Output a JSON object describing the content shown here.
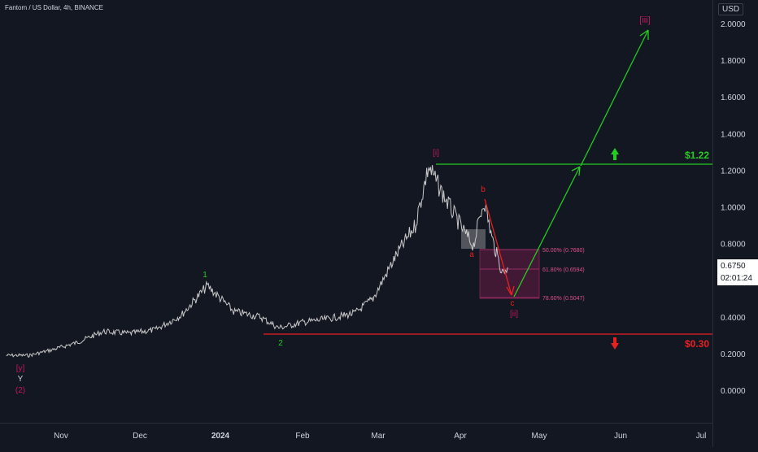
{
  "title": "Fantom / US Dollar, 4h, BINANCE",
  "price_axis": {
    "currency": "USD",
    "ticks": [
      "2.0000",
      "1.8000",
      "1.6000",
      "1.4000",
      "1.2000",
      "1.0000",
      "0.8000",
      "0.6000",
      "0.4000",
      "0.2000",
      "0.0000"
    ],
    "current_price": "0.6750",
    "countdown": "02:01:24"
  },
  "time_axis": {
    "ticks": [
      "Nov",
      "Dec",
      "2024",
      "Feb",
      "Mar",
      "Apr",
      "May",
      "Jun",
      "Jul"
    ]
  },
  "colors": {
    "background": "#131722",
    "candles": "#c8c8c8",
    "bullish": "#22cc22",
    "bearish": "#e82020",
    "wave_label": "#c2185b",
    "fib_zone": "#6a1b45"
  },
  "annotations": {
    "target_up": "$1.22",
    "target_down": "$0.30",
    "wave_y": "[y]",
    "wave_Y": "Y",
    "wave_2_paren": "(2)",
    "wave_1_green": "1",
    "wave_2_green": "2",
    "wave_i": "[i]",
    "wave_a": "a",
    "wave_b": "b",
    "wave_c": "c",
    "wave_ii": "[ii]",
    "wave_iii": "[iii]",
    "fib_50": "50.00% (0.7680)",
    "fib_618": "61.80% (0.6594)",
    "fib_786": "78.60% (0.5047)"
  },
  "chart_data": {
    "type": "line",
    "title": "Fantom / US Dollar, 4h, BINANCE",
    "xlabel": "",
    "ylabel": "",
    "ylim": [
      0,
      2.1
    ],
    "x": [
      "2023-10-08",
      "2023-10-18",
      "2023-10-28",
      "2023-11-07",
      "2023-11-17",
      "2023-11-27",
      "2023-12-07",
      "2023-12-17",
      "2023-12-27",
      "2024-01-06",
      "2024-01-16",
      "2024-01-23",
      "2024-02-01",
      "2024-02-11",
      "2024-02-21",
      "2024-02-28",
      "2024-03-08",
      "2024-03-15",
      "2024-03-20",
      "2024-03-25",
      "2024-03-30",
      "2024-04-03",
      "2024-04-06",
      "2024-04-10",
      "2024-04-13",
      "2024-04-17",
      "2024-04-19"
    ],
    "series": [
      {
        "values": [
          0.19,
          0.19,
          0.22,
          0.26,
          0.32,
          0.31,
          0.33,
          0.41,
          0.57,
          0.43,
          0.4,
          0.34,
          0.37,
          0.39,
          0.42,
          0.5,
          0.74,
          0.9,
          1.22,
          1.08,
          0.95,
          0.85,
          0.79,
          1.04,
          0.83,
          0.64,
          0.67
        ]
      }
    ],
    "fib_levels": [
      {
        "label": "50.00%",
        "value": 0.768
      },
      {
        "label": "61.80%",
        "value": 0.6594
      },
      {
        "label": "78.60%",
        "value": 0.5047
      }
    ],
    "horizontal_levels": [
      {
        "label": "$1.22",
        "value": 1.22
      },
      {
        "label": "$0.30",
        "value": 0.3
      }
    ],
    "projected_path": [
      {
        "x": "2024-04-22",
        "y": 0.52
      },
      {
        "x": "2024-05-17",
        "y": 1.22
      },
      {
        "x": "2024-06-13",
        "y": 1.96
      }
    ],
    "grid": false
  }
}
